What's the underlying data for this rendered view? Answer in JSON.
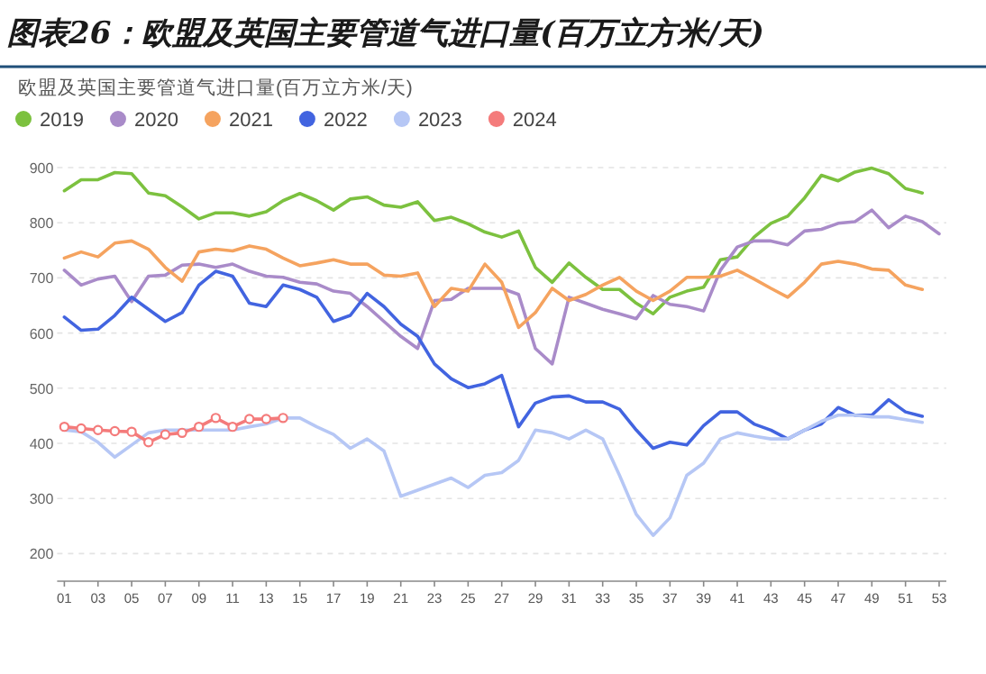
{
  "chart_data": {
    "type": "line",
    "title": "图表26：欧盟及英国主要管道气进口量(百万立方米/天)",
    "subtitle": "欧盟及英国主要管道气进口量(百万立方米/天)",
    "categories": [
      "01",
      null,
      "03",
      null,
      "05",
      null,
      "07",
      null,
      "09",
      null,
      "11",
      null,
      "13",
      null,
      "15",
      null,
      "17",
      null,
      "19",
      null,
      "21",
      null,
      "23",
      null,
      "25",
      null,
      "27",
      null,
      "29",
      null,
      "31",
      null,
      "33",
      null,
      "35",
      null,
      "37",
      null,
      "39",
      null,
      "41",
      null,
      "43",
      null,
      "45",
      null,
      "47",
      null,
      "49",
      null,
      "51",
      null,
      "53"
    ],
    "ylim": [
      150,
      900
    ],
    "yticks": [
      200,
      300,
      400,
      500,
      600,
      700,
      800,
      900
    ],
    "grid": "y",
    "legend": "top left",
    "line_style": "solid",
    "series": [
      {
        "name": "2019",
        "color": "#7cc13f",
        "marker": "none",
        "values": [
          858,
          878,
          878,
          891,
          889,
          854,
          849,
          829,
          807,
          818,
          818,
          812,
          820,
          840,
          853,
          840,
          823,
          843,
          847,
          832,
          828,
          838,
          804,
          810,
          798,
          783,
          774,
          785,
          719,
          692,
          727,
          701,
          679,
          679,
          654,
          635,
          665,
          676,
          683,
          733,
          738,
          774,
          799,
          812,
          845,
          886,
          876,
          892,
          899,
          889,
          862,
          854,
          null
        ]
      },
      {
        "name": "2020",
        "color": "#a98bc9",
        "marker": "none",
        "values": [
          714,
          687,
          698,
          703,
          657,
          703,
          705,
          723,
          725,
          719,
          725,
          712,
          703,
          701,
          692,
          689,
          676,
          672,
          648,
          621,
          594,
          572,
          659,
          661,
          681,
          681,
          681,
          670,
          572,
          544,
          665,
          654,
          643,
          635,
          626,
          668,
          652,
          648,
          640,
          714,
          756,
          767,
          767,
          760,
          785,
          788,
          799,
          802,
          823,
          791,
          812,
          802,
          780
        ]
      },
      {
        "name": "2021",
        "color": "#f5a35f",
        "marker": "none",
        "values": [
          736,
          747,
          738,
          763,
          767,
          752,
          719,
          694,
          747,
          752,
          749,
          758,
          752,
          736,
          722,
          727,
          733,
          725,
          725,
          705,
          703,
          709,
          648,
          681,
          676,
          725,
          692,
          610,
          637,
          681,
          659,
          670,
          687,
          701,
          676,
          659,
          676,
          701,
          701,
          703,
          714,
          698,
          681,
          665,
          692,
          725,
          730,
          725,
          716,
          714,
          687,
          679,
          null
        ]
      },
      {
        "name": "2022",
        "color": "#4264e0",
        "marker": "none",
        "values": [
          629,
          605,
          607,
          632,
          665,
          643,
          621,
          637,
          687,
          712,
          703,
          654,
          648,
          687,
          679,
          665,
          621,
          632,
          672,
          648,
          616,
          594,
          544,
          517,
          501,
          508,
          523,
          430,
          473,
          484,
          486,
          475,
          475,
          462,
          424,
          391,
          402,
          397,
          432,
          457,
          457,
          435,
          424,
          408,
          424,
          435,
          465,
          451,
          451,
          479,
          457,
          449,
          null
        ]
      },
      {
        "name": "2023",
        "color": "#b6c7f5",
        "marker": "none",
        "values": [
          424,
          421,
          402,
          375,
          397,
          419,
          424,
          424,
          424,
          424,
          424,
          430,
          435,
          446,
          446,
          430,
          416,
          391,
          408,
          386,
          304,
          315,
          326,
          337,
          320,
          342,
          347,
          369,
          424,
          419,
          408,
          424,
          408,
          342,
          271,
          233,
          265,
          342,
          364,
          408,
          419,
          413,
          408,
          408,
          424,
          440,
          451,
          451,
          448,
          448,
          443,
          438,
          null
        ]
      },
      {
        "name": "2024",
        "color": "#f47b7b",
        "marker": "circle",
        "values": [
          430,
          427,
          424,
          422,
          421,
          402,
          416,
          419,
          430,
          446,
          430,
          444,
          444,
          446,
          null,
          null,
          null,
          null,
          null,
          null,
          null,
          null,
          null,
          null,
          null,
          null,
          null,
          null,
          null,
          null,
          null,
          null,
          null,
          null,
          null,
          null,
          null,
          null,
          null,
          null,
          null,
          null,
          null,
          null,
          null,
          null,
          null,
          null,
          null,
          null,
          null,
          null,
          null
        ]
      }
    ]
  }
}
